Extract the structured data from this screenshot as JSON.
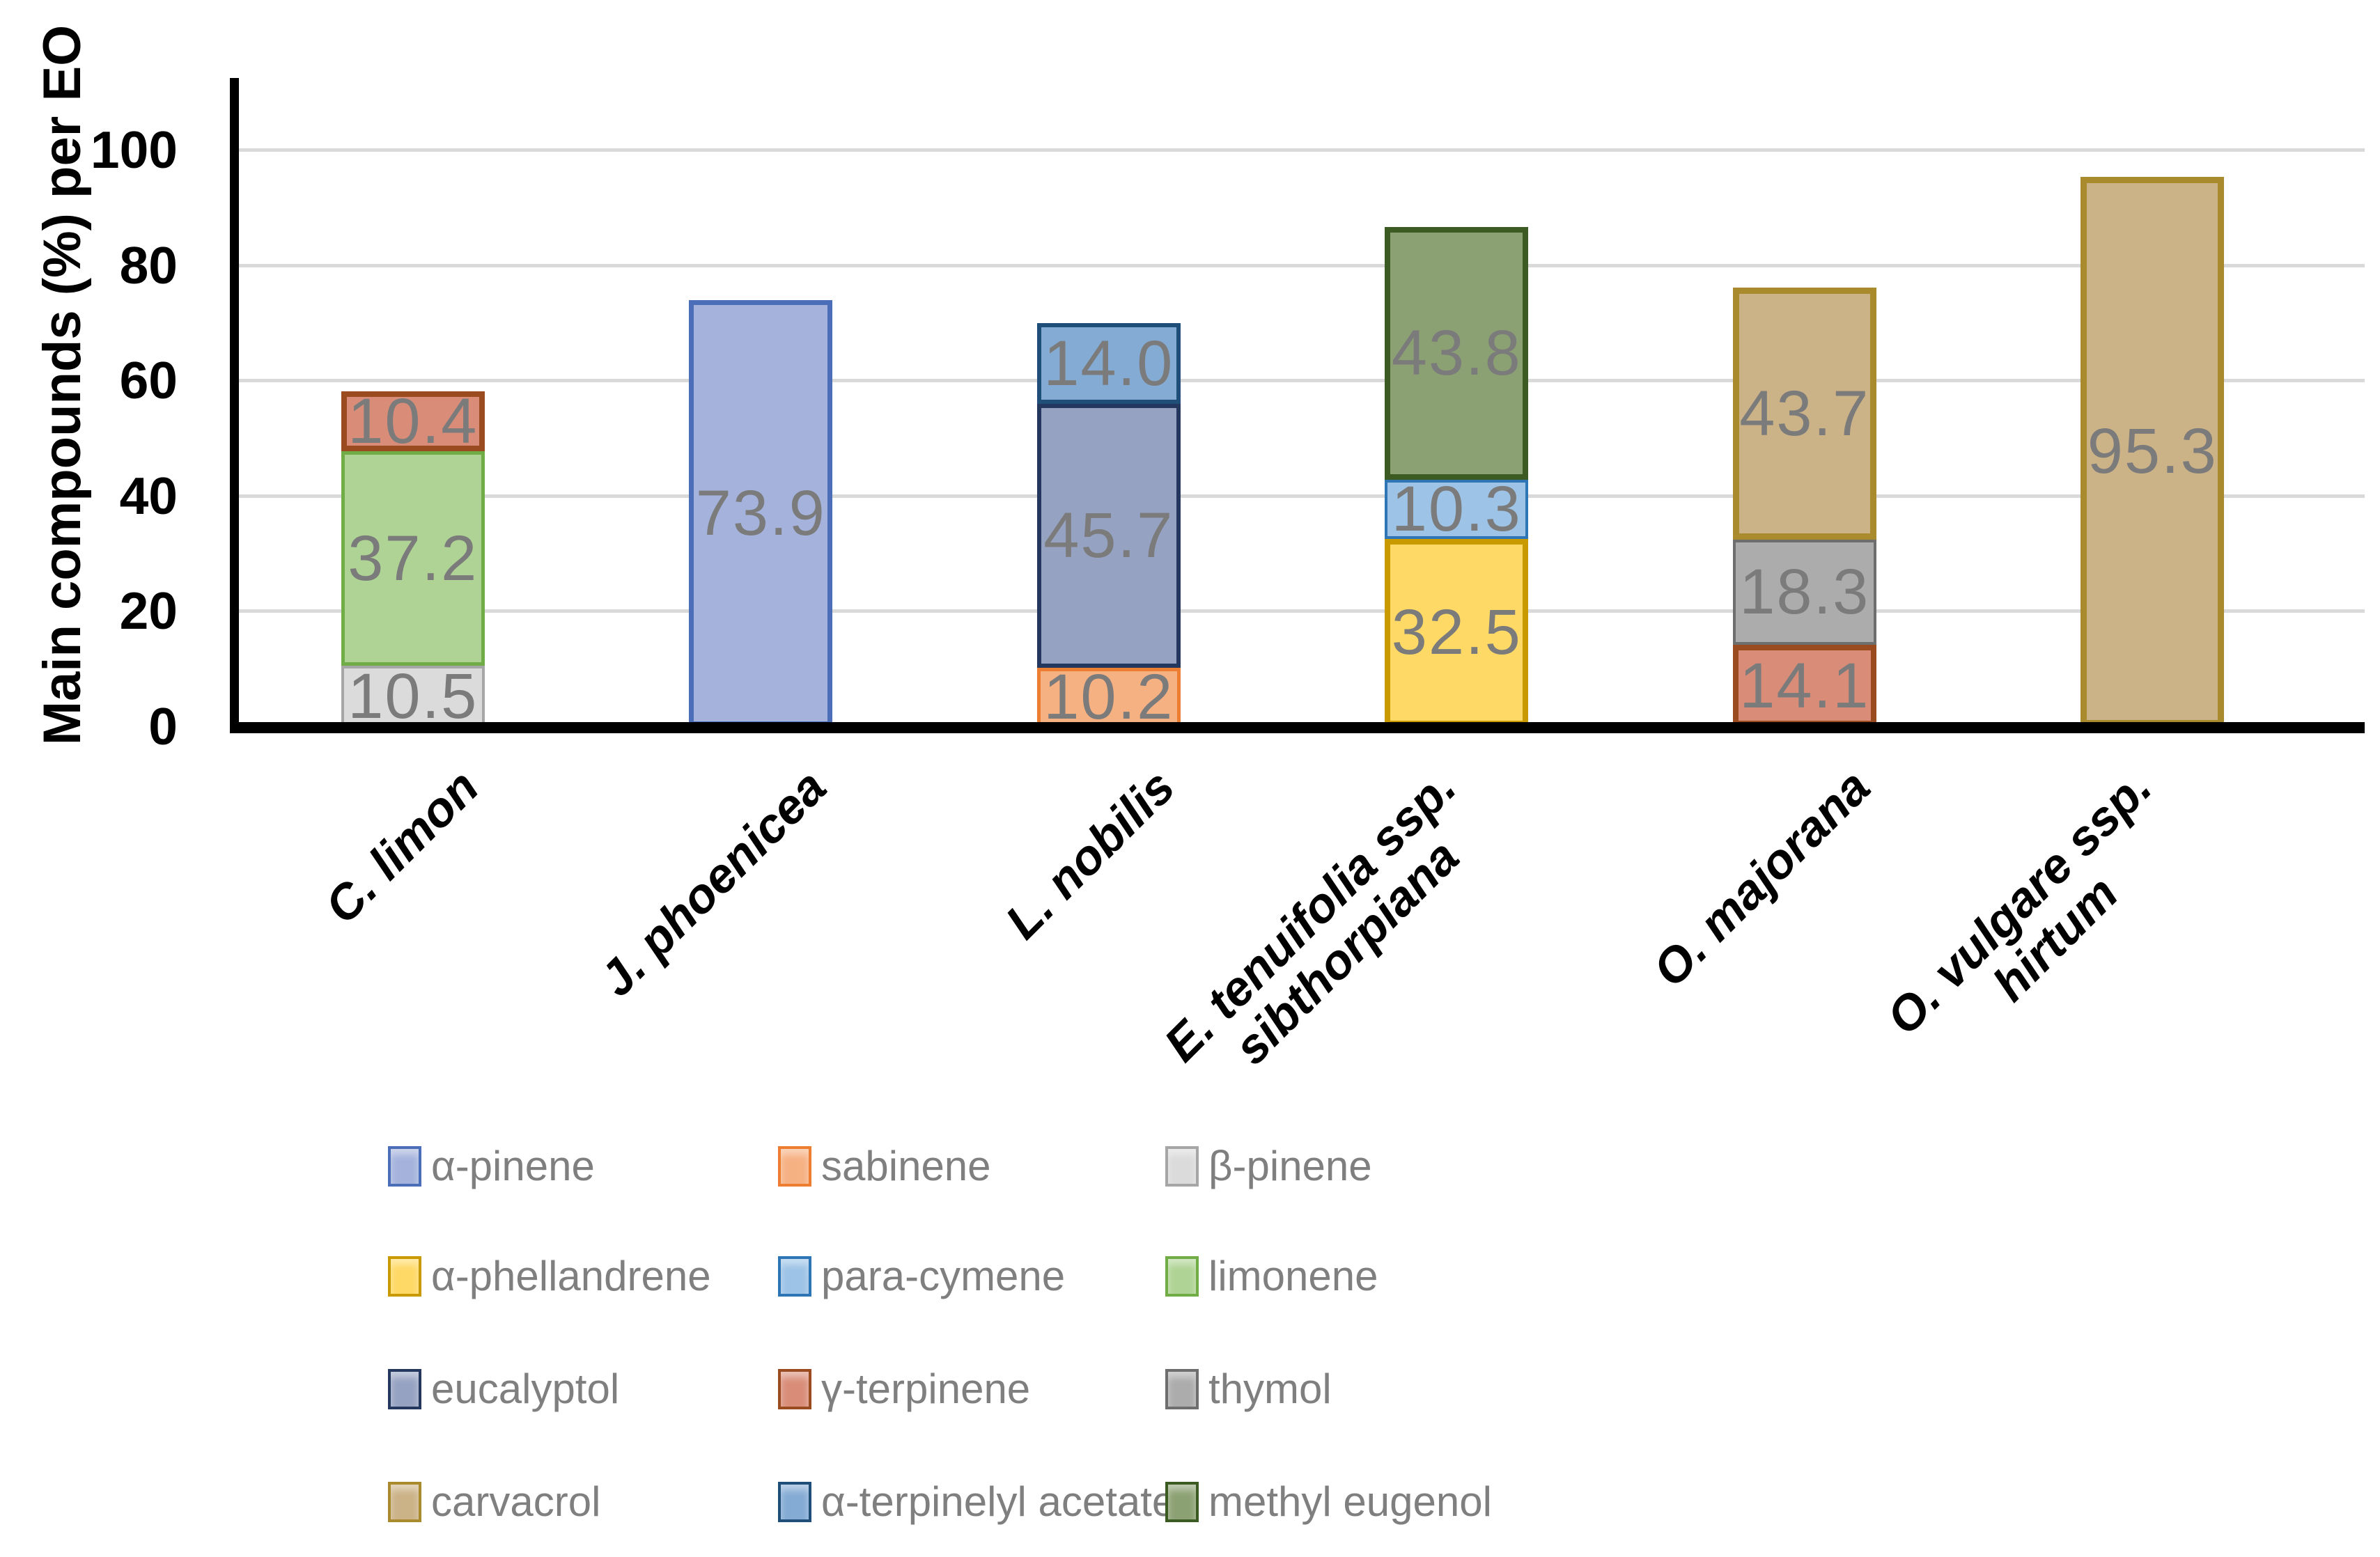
{
  "chart_data": {
    "type": "bar",
    "stacked": true,
    "title": "",
    "xlabel": "",
    "ylabel": "Main compounds (%) per EO",
    "ylim": [
      0,
      112
    ],
    "yticks": [
      0,
      20,
      40,
      60,
      80,
      100
    ],
    "grid": true,
    "legend_position": "bottom",
    "categories": [
      "C. limon",
      "J. phoenicea",
      "L. nobilis",
      "E. tenuifolia ssp. sibthorpiana",
      "O. majorana",
      "O. vulgare ssp. hirtum"
    ],
    "bars": [
      {
        "category": "C. limon",
        "category_lines": [
          "C. limon"
        ],
        "segments": [
          {
            "compound": "β-pinene",
            "value": 10.5,
            "label": "10.5"
          },
          {
            "compound": "limonene",
            "value": 37.2,
            "label": "37.2"
          },
          {
            "compound": "γ-terpinene",
            "value": 10.4,
            "label": "10.4"
          }
        ]
      },
      {
        "category": "J. phoenicea",
        "category_lines": [
          "J. phoenicea"
        ],
        "segments": [
          {
            "compound": "α-pinene",
            "value": 73.9,
            "label": "73.9"
          }
        ]
      },
      {
        "category": "L. nobilis",
        "category_lines": [
          "L. nobilis"
        ],
        "segments": [
          {
            "compound": "sabinene",
            "value": 10.2,
            "label": "10.2"
          },
          {
            "compound": "eucalyptol",
            "value": 45.7,
            "label": "45.7"
          },
          {
            "compound": "α-terpinelyl acetate",
            "value": 14.0,
            "label": "14.0"
          }
        ]
      },
      {
        "category": "E. tenuifolia ssp. sibthorpiana",
        "category_lines": [
          "E. tenuifolia ssp.",
          "sibthorpiana"
        ],
        "segments": [
          {
            "compound": "α-phellandrene",
            "value": 32.5,
            "label": "32.5"
          },
          {
            "compound": "para-cymene",
            "value": 10.3,
            "label": "10.3"
          },
          {
            "compound": "methyl eugenol",
            "value": 43.8,
            "label": "43.8"
          }
        ]
      },
      {
        "category": "O. majorana",
        "category_lines": [
          "O. majorana"
        ],
        "segments": [
          {
            "compound": "γ-terpinene",
            "value": 14.1,
            "label": "14.1"
          },
          {
            "compound": "thymol",
            "value": 18.3,
            "label": "18.3"
          },
          {
            "compound": "carvacrol",
            "value": 43.7,
            "label": "43.7"
          }
        ]
      },
      {
        "category": "O. vulgare ssp. hirtum",
        "category_lines": [
          "O. vulgare ssp.",
          "hirtum"
        ],
        "segments": [
          {
            "compound": "carvacrol",
            "value": 95.3,
            "label": "95.3"
          }
        ]
      }
    ],
    "legend_rows": [
      [
        "α-pinene",
        "sabinene",
        "β-pinene"
      ],
      [
        "α-phellandrene",
        "para-cymene",
        "limonene"
      ],
      [
        "eucalyptol",
        "γ-terpinene",
        "thymol"
      ],
      [
        "carvacrol",
        "α-terpinelyl acetate",
        "methyl eugenol"
      ]
    ]
  },
  "compounds": {
    "α-pinene": {
      "fill": "#A5B3DC",
      "border": "#4A6FB8"
    },
    "sabinene": {
      "fill": "#F6B183",
      "border": "#ED7D31"
    },
    "β-pinene": {
      "fill": "#DBDBDB",
      "border": "#A6A6A6"
    },
    "α-phellandrene": {
      "fill": "#FFD966",
      "border": "#C99A00"
    },
    "para-cymene": {
      "fill": "#9DC3E6",
      "border": "#2E75B6"
    },
    "limonene": {
      "fill": "#AFD394",
      "border": "#70AD47"
    },
    "eucalyptol": {
      "fill": "#96A2C1",
      "border": "#24375E"
    },
    "γ-terpinene": {
      "fill": "#D98D79",
      "border": "#9A4B20"
    },
    "thymol": {
      "fill": "#ACACAC",
      "border": "#6E6E6E"
    },
    "carvacrol": {
      "fill": "#CBB287",
      "border": "#A98B2D"
    },
    "α-terpinelyl acetate": {
      "fill": "#84ABD4",
      "border": "#1F4E79"
    },
    "methyl eugenol": {
      "fill": "#8CA173",
      "border": "#3B5B23"
    }
  },
  "style": {
    "background": "#FFFFFF",
    "axis_color": "#000000",
    "gridline_color": "#D9D9D9",
    "value_label_color": "#7B7B7B",
    "legend_text_color": "#7F7F7F"
  }
}
